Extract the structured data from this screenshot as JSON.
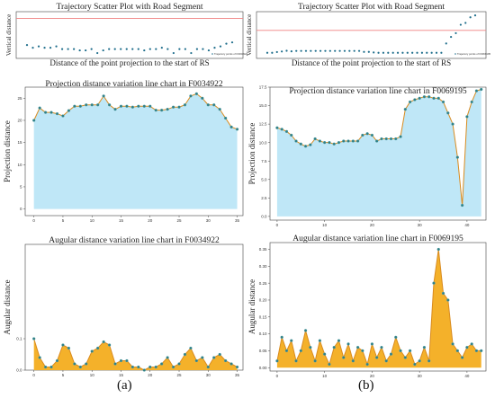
{
  "captions": [
    "(a)",
    "(b)"
  ],
  "chart_data": [
    {
      "id": "scatter-a",
      "type": "scatter",
      "title": "Trajectory Scatter Plot with Road Segment",
      "xlabel": "Distance of the point projection to the start of RS",
      "ylabel": "Vertical distance",
      "legend": "Trajectory points of F0034922",
      "legend_position": "bottom-right",
      "color": "#1f6e8c",
      "road_color": "#f08080",
      "ylim": [
        -30,
        5
      ],
      "road_y": 0,
      "x": [
        0,
        1,
        2,
        3,
        4,
        5,
        6,
        7,
        8,
        9,
        10,
        11,
        12,
        13,
        14,
        15,
        16,
        17,
        18,
        19,
        20,
        21,
        22,
        23,
        24,
        25,
        26,
        27,
        28,
        29,
        30,
        31,
        32,
        33,
        34,
        35
      ],
      "y": [
        -20,
        -22,
        -21,
        -22,
        -22,
        -21,
        -23,
        -23,
        -23,
        -24,
        -24,
        -23,
        -26,
        -24,
        -23,
        -23,
        -23,
        -23,
        -23,
        -23,
        -24,
        -23,
        -23,
        -22,
        -23,
        -26,
        -23,
        -23,
        -26,
        -23,
        -23,
        -24,
        -22,
        -21,
        -19,
        -18
      ]
    },
    {
      "id": "scatter-b",
      "type": "scatter",
      "title": "Trajectory Scatter Plot with Road Segment",
      "xlabel": "Distance of the point projection to the start of RS",
      "ylabel": "Vertical distance",
      "legend": "Trajectory points of F0069195",
      "legend_position": "bottom-right",
      "color": "#1f6e8c",
      "road_color": "#f08080",
      "ylim": [
        -15,
        10
      ],
      "road_y": 0,
      "x": [
        0,
        1,
        2,
        3,
        4,
        5,
        6,
        7,
        8,
        9,
        10,
        11,
        12,
        13,
        14,
        15,
        16,
        17,
        18,
        19,
        20,
        21,
        22,
        23,
        24,
        25,
        26,
        27,
        28,
        29,
        30,
        31,
        32,
        33,
        34,
        35,
        36,
        37,
        38,
        39,
        40,
        41,
        42,
        43
      ],
      "y": [
        -12,
        -12,
        -11.6,
        -11.3,
        -10.9,
        -11.2,
        -11,
        -11,
        -11,
        -11,
        -11,
        -11,
        -11,
        -11,
        -11,
        -11,
        -11,
        -11,
        -11,
        -11,
        -11.5,
        -11.5,
        -11.8,
        -12,
        -12,
        -12,
        -12,
        -12,
        -12,
        -12,
        -12,
        -12,
        -12,
        -12,
        -12,
        -12,
        -12,
        -7,
        -3.5,
        -1.5,
        3,
        4,
        7,
        8
      ]
    },
    {
      "id": "proj-a",
      "type": "line",
      "title": "Projection distance variation line chart in F0034922",
      "xlabel": "",
      "ylabel": "Projection distance",
      "line_color": "#d98b1f",
      "marker_color": "#2f7f86",
      "fill_color": "#bfe7f7",
      "xlim": [
        -1.5,
        36
      ],
      "ylim": [
        -1.5,
        27.5
      ],
      "xticks": [
        0,
        5,
        10,
        15,
        20,
        25,
        30,
        35
      ],
      "yticks": [
        0,
        5,
        10,
        15,
        20,
        25
      ],
      "x": [
        0,
        1,
        2,
        3,
        4,
        5,
        6,
        7,
        8,
        9,
        10,
        11,
        12,
        13,
        14,
        15,
        16,
        17,
        18,
        19,
        20,
        21,
        22,
        23,
        24,
        25,
        26,
        27,
        28,
        29,
        30,
        31,
        32,
        33,
        34,
        35
      ],
      "y": [
        20,
        22.8,
        21.8,
        21.8,
        21.5,
        21,
        22.2,
        23.2,
        23.2,
        23.5,
        23.5,
        23.5,
        25.5,
        23.5,
        22.5,
        23.2,
        23.2,
        23,
        23.2,
        23.2,
        23.2,
        22.3,
        22.3,
        22.5,
        23,
        23,
        23.5,
        25.5,
        26,
        25,
        23.5,
        23.5,
        22.5,
        20.5,
        18.5,
        18
      ]
    },
    {
      "id": "proj-b",
      "type": "line",
      "title": "Projection distance variation line chart in F0069195",
      "xlabel": "",
      "ylabel": "Projection distance",
      "line_color": "#d98b1f",
      "marker_color": "#2f7f86",
      "fill_color": "#bfe7f7",
      "xlim": [
        -1.5,
        44
      ],
      "ylim": [
        -0.5,
        17.5
      ],
      "xticks": [
        0,
        10,
        20,
        30,
        40
      ],
      "yticks": [
        0,
        2.5,
        5,
        7.5,
        10,
        12.5,
        15,
        17.5
      ],
      "ytick_labels": [
        "0.0",
        "2.5",
        "5.0",
        "7.5",
        "10.0",
        "12.5",
        "15.0",
        "17.5"
      ],
      "x": [
        0,
        1,
        2,
        3,
        4,
        5,
        6,
        7,
        8,
        9,
        10,
        11,
        12,
        13,
        14,
        15,
        16,
        17,
        18,
        19,
        20,
        21,
        22,
        23,
        24,
        25,
        26,
        27,
        28,
        29,
        30,
        31,
        32,
        33,
        34,
        35,
        36,
        37,
        38,
        39,
        40,
        41,
        42,
        43
      ],
      "y": [
        12,
        11.8,
        11.5,
        11,
        10.2,
        9.8,
        9.5,
        9.7,
        10.5,
        10.2,
        10,
        10,
        9.8,
        10,
        10.2,
        10.2,
        10.2,
        10.2,
        11,
        11.2,
        11,
        10.2,
        10.5,
        10.5,
        10.5,
        10.5,
        10.8,
        14.5,
        15.5,
        15.8,
        16,
        16.2,
        16.2,
        16,
        16,
        15.5,
        14,
        12.5,
        8,
        1.5,
        13.5,
        15.5,
        17,
        17.2
      ]
    },
    {
      "id": "ang-a",
      "type": "area",
      "title": "Augular distance variation line chart in F0034922",
      "xlabel": "",
      "ylabel": "Augular distance",
      "line_color": "#d98b1f",
      "marker_color": "#2f7f86",
      "fill_color": "#f4b12a",
      "xlim": [
        -1.5,
        36
      ],
      "ylim": [
        0,
        0.4
      ],
      "xticks": [
        0,
        5,
        10,
        15,
        20,
        25,
        30,
        35
      ],
      "yticks": [
        0,
        0.1
      ],
      "ytick_labels": [
        "0.0",
        "0.1"
      ],
      "x": [
        0,
        1,
        2,
        3,
        4,
        5,
        6,
        7,
        8,
        9,
        10,
        11,
        12,
        13,
        14,
        15,
        16,
        17,
        18,
        19,
        20,
        21,
        22,
        23,
        24,
        25,
        26,
        27,
        28,
        29,
        30,
        31,
        32,
        33,
        34,
        35
      ],
      "y": [
        0.1,
        0.04,
        0.01,
        0.01,
        0.03,
        0.08,
        0.07,
        0.02,
        0.01,
        0.02,
        0.06,
        0.07,
        0.09,
        0.08,
        0.02,
        0.03,
        0.03,
        0.01,
        0.01,
        0.0,
        0.01,
        0.01,
        0.02,
        0.04,
        0.01,
        0.02,
        0.05,
        0.07,
        0.03,
        0.04,
        0.01,
        0.04,
        0.05,
        0.03,
        0.02,
        0.01
      ]
    },
    {
      "id": "ang-b",
      "type": "area",
      "title": "Augular distance variation line chart in F0069195",
      "xlabel": "",
      "ylabel": "Augular distance",
      "line_color": "#d98b1f",
      "marker_color": "#2f7f86",
      "fill_color": "#f4b12a",
      "xlim": [
        -1.5,
        44
      ],
      "ylim": [
        -0.01,
        0.37
      ],
      "xticks": [
        0,
        10,
        20,
        30,
        40
      ],
      "yticks": [
        0,
        0.05,
        0.1,
        0.15,
        0.2,
        0.25,
        0.3,
        0.35
      ],
      "ytick_labels": [
        "0.00",
        "0.05",
        "0.10",
        "0.15",
        "0.20",
        "0.25",
        "0.30",
        "0.35"
      ],
      "x": [
        0,
        1,
        2,
        3,
        4,
        5,
        6,
        7,
        8,
        9,
        10,
        11,
        12,
        13,
        14,
        15,
        16,
        17,
        18,
        19,
        20,
        21,
        22,
        23,
        24,
        25,
        26,
        27,
        28,
        29,
        30,
        31,
        32,
        33,
        34,
        35,
        36,
        37,
        38,
        39,
        40,
        41,
        42,
        43
      ],
      "y": [
        0.02,
        0.09,
        0.05,
        0.08,
        0.02,
        0.05,
        0.11,
        0.06,
        0.02,
        0.08,
        0.04,
        0.01,
        0.06,
        0.08,
        0.03,
        0.07,
        0.02,
        0.06,
        0.05,
        0.01,
        0.07,
        0.03,
        0.06,
        0.02,
        0.04,
        0.09,
        0.05,
        0.03,
        0.05,
        0.01,
        0.02,
        0.06,
        0.02,
        0.25,
        0.35,
        0.22,
        0.2,
        0.07,
        0.05,
        0.03,
        0.06,
        0.07,
        0.05,
        0.05
      ]
    }
  ]
}
